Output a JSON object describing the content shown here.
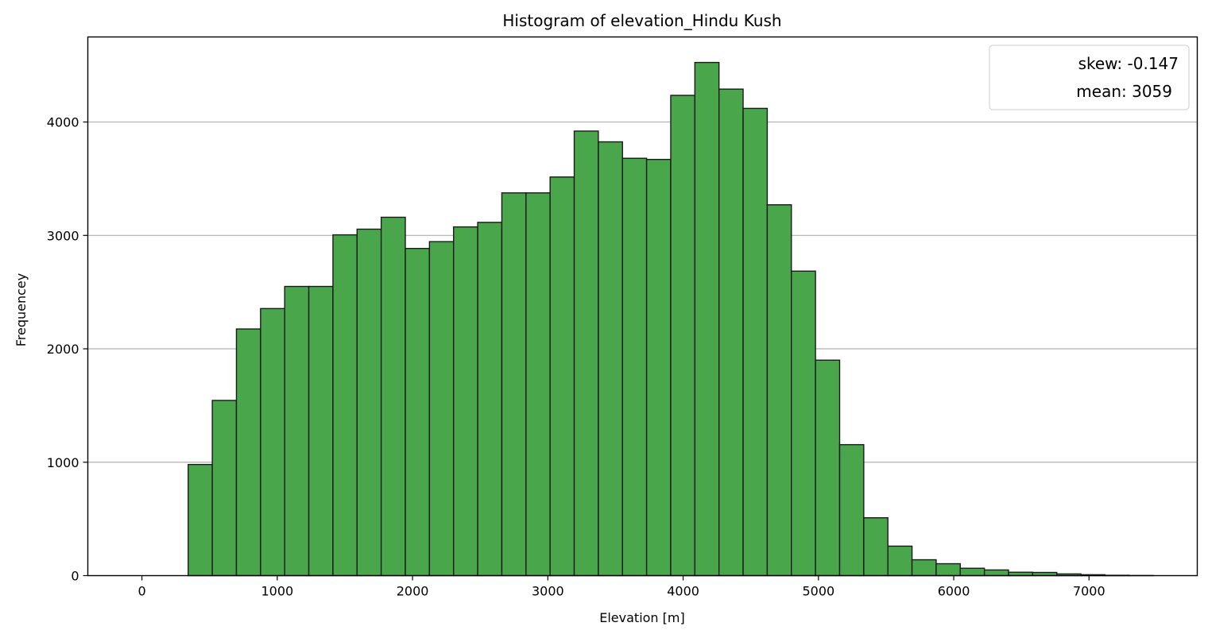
{
  "chart_data": {
    "type": "bar",
    "title": "Histogram of elevation_Hindu Kush",
    "xlabel": "Elevation [m]",
    "ylabel": "Frequencey",
    "xlim": [
      -400,
      7800
    ],
    "ylim": [
      0,
      4750
    ],
    "x_ticks": [
      0,
      1000,
      2000,
      3000,
      4000,
      5000,
      6000,
      7000
    ],
    "y_ticks": [
      0,
      1000,
      2000,
      3000,
      4000
    ],
    "grid": "y",
    "bar_color": "#4aa64a",
    "edge_color": "#1a1a1a",
    "grid_color": "#b0b0b0",
    "bin_edges": [
      -15.0,
      163.3,
      341.7,
      520.0,
      698.3,
      876.7,
      1055.0,
      1233.3,
      1411.7,
      1590.0,
      1768.3,
      1946.7,
      2125.0,
      2303.3,
      2481.7,
      2660.0,
      2838.3,
      3016.7,
      3195.0,
      3373.3,
      3551.7,
      3730.0,
      3908.3,
      4086.7,
      4265.0,
      4443.3,
      4621.7,
      4800.0,
      4978.3,
      5156.7,
      5335.0,
      5513.3,
      5691.7,
      5870.0,
      6048.3,
      6226.7,
      6405.0,
      6583.3,
      6761.7,
      6940.0,
      7118.3,
      7296.7,
      7475.0
    ],
    "counts": [
      0,
      0,
      980,
      1545,
      2175,
      2355,
      2550,
      2550,
      3005,
      3055,
      3160,
      2885,
      2945,
      3075,
      3115,
      3375,
      3375,
      3515,
      3920,
      3825,
      3680,
      3670,
      4235,
      4525,
      4290,
      4120,
      3270,
      2685,
      1900,
      1155,
      510,
      260,
      140,
      105,
      65,
      50,
      30,
      28,
      15,
      8,
      3,
      1
    ],
    "legend": {
      "location": "upper right",
      "entries": [
        "skew: -0.147",
        "mean: 3059"
      ]
    }
  }
}
